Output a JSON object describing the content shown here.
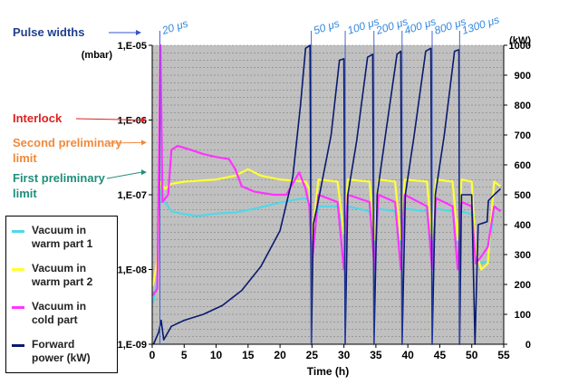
{
  "chart_data": {
    "type": "line",
    "title": "",
    "xlabel": "Time (h)",
    "xlim": [
      0,
      55
    ],
    "x_ticks": [
      0,
      5,
      10,
      15,
      20,
      25,
      30,
      35,
      40,
      45,
      50,
      55
    ],
    "y_left": {
      "unit_label": "(mbar)",
      "scale": "log",
      "ylim": [
        1e-09,
        1e-05
      ],
      "tick_labels": [
        "1,E-09",
        "1,E-08",
        "1,E-07",
        "1,E-06",
        "1,E-05"
      ]
    },
    "y_right": {
      "unit_label": "(kW)",
      "ylim": [
        0,
        1000
      ],
      "ticks": [
        0,
        100,
        200,
        300,
        400,
        500,
        600,
        700,
        800,
        900,
        1000
      ]
    },
    "grid": true,
    "plot_background": "#c0c0c0",
    "series": [
      {
        "name": "Vacuum in warm part 1",
        "color": "#4fd8e8",
        "axis": "left",
        "points": [
          [
            0.1,
            3.5e-09
          ],
          [
            0.8,
            7e-09
          ],
          [
            1.2,
            1.2e-07
          ],
          [
            2,
            8e-08
          ],
          [
            3,
            6e-08
          ],
          [
            5,
            5.5e-08
          ],
          [
            7,
            5.2e-08
          ],
          [
            10,
            5.6e-08
          ],
          [
            13,
            5.8e-08
          ],
          [
            16,
            6.5e-08
          ],
          [
            19,
            7.5e-08
          ],
          [
            22,
            8.5e-08
          ],
          [
            24,
            9e-08
          ],
          [
            24.6,
            8e-08
          ],
          [
            25,
            2e-08
          ],
          [
            26,
            7e-08
          ],
          [
            29,
            7e-08
          ],
          [
            30,
            3e-08
          ],
          [
            30.6,
            7e-08
          ],
          [
            34,
            6e-08
          ],
          [
            34.8,
            2.2e-08
          ],
          [
            35.4,
            6.5e-08
          ],
          [
            38,
            6e-08
          ],
          [
            38.9,
            2.2e-08
          ],
          [
            39.5,
            6.5e-08
          ],
          [
            43,
            6e-08
          ],
          [
            43.8,
            2.2e-08
          ],
          [
            44.4,
            6.5e-08
          ],
          [
            47,
            6e-08
          ],
          [
            47.8,
            2.2e-08
          ],
          [
            48.4,
            6e-08
          ],
          [
            50,
            5.5e-08
          ],
          [
            50.6,
            1.5e-08
          ],
          [
            51.5,
            1.2e-08
          ],
          [
            52.5,
            1.3e-08
          ],
          [
            53.5,
            7e-08
          ],
          [
            54.5,
            6e-08
          ]
        ]
      },
      {
        "name": "Vacuum in warm part 2",
        "color": "#ffff33",
        "axis": "left",
        "points": [
          [
            0.1,
            6e-09
          ],
          [
            0.8,
            1.3e-08
          ],
          [
            1.2,
            1.5e-07
          ],
          [
            2,
            1.2e-07
          ],
          [
            3,
            1.4e-07
          ],
          [
            5,
            1.5e-07
          ],
          [
            10,
            1.6e-07
          ],
          [
            13,
            1.8e-07
          ],
          [
            15,
            2.2e-07
          ],
          [
            17,
            1.8e-07
          ],
          [
            20,
            1.6e-07
          ],
          [
            24,
            1.5e-07
          ],
          [
            24.6,
            1.2e-07
          ],
          [
            25,
            2.5e-08
          ],
          [
            26,
            1.6e-07
          ],
          [
            29,
            1.5e-07
          ],
          [
            30,
            3e-08
          ],
          [
            30.6,
            1.6e-07
          ],
          [
            34,
            1.5e-07
          ],
          [
            34.8,
            2.5e-08
          ],
          [
            35.4,
            1.6e-07
          ],
          [
            38,
            1.5e-07
          ],
          [
            38.9,
            2.5e-08
          ],
          [
            39.5,
            1.6e-07
          ],
          [
            43,
            1.5e-07
          ],
          [
            43.8,
            2.5e-08
          ],
          [
            44.4,
            1.6e-07
          ],
          [
            47,
            1.5e-07
          ],
          [
            47.8,
            2.5e-08
          ],
          [
            48.4,
            1.6e-07
          ],
          [
            50,
            1.5e-07
          ],
          [
            50.6,
            1.8e-08
          ],
          [
            51.5,
            1e-08
          ],
          [
            52.5,
            1.2e-08
          ],
          [
            53.5,
            1.5e-07
          ],
          [
            54.5,
            1.3e-07
          ]
        ]
      },
      {
        "name": "Vacuum in cold part",
        "color": "#ff33ff",
        "axis": "left",
        "points": [
          [
            0.1,
            4.5e-09
          ],
          [
            0.8,
            5.5e-09
          ],
          [
            1.3,
            1e-05
          ],
          [
            1.6,
            8e-08
          ],
          [
            2.5,
            1e-07
          ],
          [
            3,
            4e-07
          ],
          [
            4,
            4.5e-07
          ],
          [
            6,
            4e-07
          ],
          [
            8,
            3.5e-07
          ],
          [
            10,
            3.2e-07
          ],
          [
            12,
            3e-07
          ],
          [
            13,
            2.2e-07
          ],
          [
            14,
            1.3e-07
          ],
          [
            16,
            1.1e-07
          ],
          [
            19,
            1e-07
          ],
          [
            21,
            1e-07
          ],
          [
            23,
            2e-07
          ],
          [
            24,
            1.2e-07
          ],
          [
            24.6,
            7e-08
          ],
          [
            25,
            1.2e-08
          ],
          [
            26,
            1e-07
          ],
          [
            29,
            8e-08
          ],
          [
            30,
            1e-08
          ],
          [
            30.6,
            1e-07
          ],
          [
            34,
            8e-08
          ],
          [
            34.8,
            1e-08
          ],
          [
            35.4,
            1e-07
          ],
          [
            38,
            8e-08
          ],
          [
            38.9,
            1e-08
          ],
          [
            39.5,
            1e-07
          ],
          [
            43,
            7e-08
          ],
          [
            43.8,
            1e-08
          ],
          [
            44.4,
            9e-08
          ],
          [
            47,
            7e-08
          ],
          [
            47.8,
            1e-08
          ],
          [
            48.4,
            8e-08
          ],
          [
            50,
            7e-08
          ],
          [
            50.6,
            1.2e-08
          ],
          [
            51.5,
            1.5e-08
          ],
          [
            52.5,
            2e-08
          ],
          [
            53.5,
            7e-08
          ],
          [
            54.5,
            6e-08
          ]
        ]
      },
      {
        "name": "Forward power (kW)",
        "color": "#0a1a6e",
        "axis": "right",
        "points": [
          [
            0.2,
            0
          ],
          [
            1,
            40
          ],
          [
            1.4,
            80
          ],
          [
            1.8,
            15
          ],
          [
            3,
            60
          ],
          [
            5,
            80
          ],
          [
            8,
            100
          ],
          [
            11,
            130
          ],
          [
            14,
            180
          ],
          [
            17,
            260
          ],
          [
            20,
            380
          ],
          [
            22,
            560
          ],
          [
            23.2,
            800
          ],
          [
            24,
            990
          ],
          [
            24.7,
            1000
          ],
          [
            24.9,
            0
          ],
          [
            25.2,
            400
          ],
          [
            26,
            480
          ],
          [
            28,
            700
          ],
          [
            29.3,
            950
          ],
          [
            30,
            955
          ],
          [
            30.2,
            0
          ],
          [
            30.6,
            500
          ],
          [
            32,
            680
          ],
          [
            33.7,
            960
          ],
          [
            34.5,
            970
          ],
          [
            34.7,
            0
          ],
          [
            35.2,
            500
          ],
          [
            36.5,
            700
          ],
          [
            38.3,
            970
          ],
          [
            38.9,
            980
          ],
          [
            39.1,
            0
          ],
          [
            39.6,
            500
          ],
          [
            41,
            700
          ],
          [
            42.8,
            980
          ],
          [
            43.6,
            990
          ],
          [
            43.8,
            0
          ],
          [
            44.3,
            500
          ],
          [
            45.7,
            700
          ],
          [
            47.3,
            980
          ],
          [
            48,
            985
          ],
          [
            48.1,
            0
          ],
          [
            48.4,
            500
          ],
          [
            50,
            500
          ],
          [
            50.5,
            0
          ],
          [
            51,
            400
          ],
          [
            52.4,
            410
          ],
          [
            52.6,
            480
          ],
          [
            53.5,
            500
          ],
          [
            54.5,
            520
          ]
        ]
      }
    ],
    "annotations": {
      "pulse_widths_label": "Pulse widths",
      "pulse_labels": [
        {
          "text": "20 μs",
          "x": 1.2
        },
        {
          "text": "50 μs",
          "x": 24.9
        },
        {
          "text": "100 μs",
          "x": 30.2
        },
        {
          "text": "200 μs",
          "x": 34.7
        },
        {
          "text": "400 μs",
          "x": 39.1
        },
        {
          "text": "800 μs",
          "x": 43.8
        },
        {
          "text": "1300 μs",
          "x": 48.1
        }
      ],
      "limits": [
        {
          "text": "Interlock",
          "value": 1e-06,
          "color": "#e02020"
        },
        {
          "text": "Second preliminary limit",
          "value": 5e-07,
          "color": "#f08a3c"
        },
        {
          "text": "First preliminary limit",
          "value": 2e-07,
          "color": "#1f8f7a"
        }
      ]
    }
  },
  "legend": [
    {
      "label": "Vacuum in\nwarm part 1",
      "color": "#4fd8e8"
    },
    {
      "label": "Vacuum in\nwarm part 2",
      "color": "#ffff33"
    },
    {
      "label": "Vacuum in\ncold part",
      "color": "#ff33ff"
    },
    {
      "label": "Forward\npower (kW)",
      "color": "#0a1a6e"
    }
  ]
}
